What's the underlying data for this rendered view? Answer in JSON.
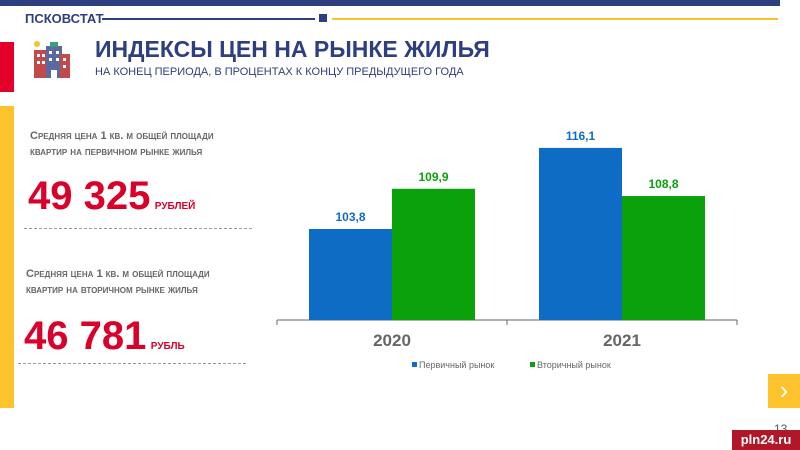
{
  "header": {
    "brand": "ПСКОВСТАТ",
    "title": "ИНДЕКСЫ ЦЕН НА РЫНКЕ ЖИЛЬЯ",
    "subtitle": "НА КОНЕЦ ПЕРИОДА,  В ПРОЦЕНТАХ К КОНЦУ ПРЕДЫДУЩЕГО ГОДА"
  },
  "stats": [
    {
      "label1": "Средняя цена 1 кв. м общей площади",
      "label2": "квартир на первичном рынке жилья",
      "value": "49 325",
      "unit": "РУБЛЕЙ"
    },
    {
      "label1": "Средняя цена 1 кв. м общей площади",
      "label2": "квартир на вторичном рынке жилья",
      "value": "46 781",
      "unit": "РУБЛЬ"
    }
  ],
  "chart_data": {
    "type": "bar",
    "categories": [
      "2020",
      "2021"
    ],
    "series": [
      {
        "name": "Первичный рынок",
        "color": "#0f6cc4",
        "values": [
          103.8,
          116.1
        ],
        "labels": [
          "103,8",
          "116,1"
        ]
      },
      {
        "name": "Вторичный рынок",
        "color": "#0aa10a",
        "values": [
          109.9,
          108.8
        ],
        "labels": [
          "109,9",
          "108,8"
        ]
      }
    ],
    "ylim": [
      90,
      120
    ],
    "grid": false,
    "legend": "bottom"
  },
  "page_number": "13",
  "watermark": "pln24.ru"
}
